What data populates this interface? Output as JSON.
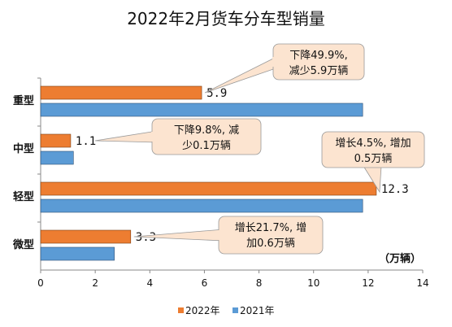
{
  "chart_data": {
    "type": "bar",
    "orientation": "horizontal",
    "title": "2022年2月货车分车型销量",
    "categories": [
      "重型",
      "中型",
      "轻型",
      "微型"
    ],
    "series": [
      {
        "name": "2022年",
        "color": "#ED7D31",
        "values": [
          5.9,
          1.1,
          12.3,
          3.3
        ],
        "data_labels": [
          "5.9",
          "1.1",
          "12.3",
          "3.3"
        ]
      },
      {
        "name": "2021年",
        "color": "#5B9BD5",
        "values": [
          11.8,
          1.2,
          11.8,
          2.7
        ]
      }
    ],
    "xlim": [
      0,
      14
    ],
    "xticks": [
      "0",
      "2",
      "4",
      "6",
      "8",
      "10",
      "12",
      "14"
    ],
    "unit_label": "（万辆）",
    "legend_position": "bottom",
    "grid": false,
    "annotations": [
      {
        "category": "重型",
        "lines": [
          "下降49.9%,",
          "减少5.9万辆"
        ]
      },
      {
        "category": "中型",
        "lines": [
          "下降9.8%, 减",
          "少0.1万辆"
        ]
      },
      {
        "category": "轻型",
        "lines": [
          "增长4.5%, 增加",
          "0.5万辆"
        ]
      },
      {
        "category": "微型",
        "lines": [
          "增长21.7%, 增",
          "加0.6万辆"
        ]
      }
    ],
    "annotation_fill": "#FCE4D0",
    "annotation_stroke": "#999999"
  }
}
